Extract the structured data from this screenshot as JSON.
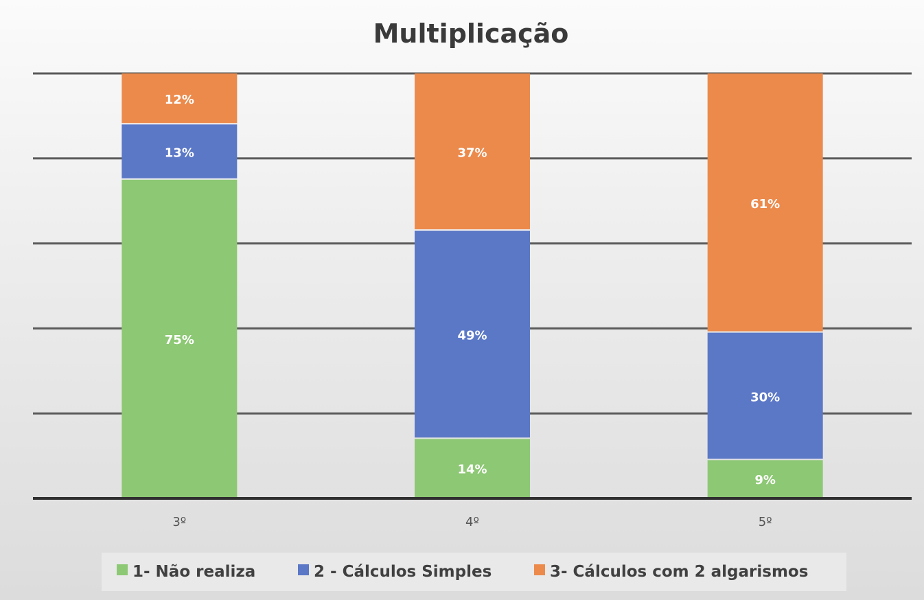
{
  "chart_data": {
    "type": "bar",
    "stacked": true,
    "title": "Multiplicação",
    "categories": [
      "3º",
      "4º",
      "5º"
    ],
    "series": [
      {
        "name": "1- Não realiza",
        "color": "#8dc874",
        "values": [
          75,
          14,
          9
        ],
        "labels": [
          "75%",
          "14%",
          "9%"
        ]
      },
      {
        "name": "2 - Cálculos Simples",
        "color": "#5b78c7",
        "values": [
          13,
          49,
          30
        ],
        "labels": [
          "13%",
          "49%",
          "30%"
        ]
      },
      {
        "name": "3-  Cálculos com 2 algarismos",
        "color": "#ec8a4c",
        "values": [
          12,
          37,
          61
        ],
        "labels": [
          "12%",
          "37%",
          "61%"
        ]
      }
    ],
    "ylim": [
      0,
      100
    ],
    "grid": true,
    "legend": "bottom"
  }
}
